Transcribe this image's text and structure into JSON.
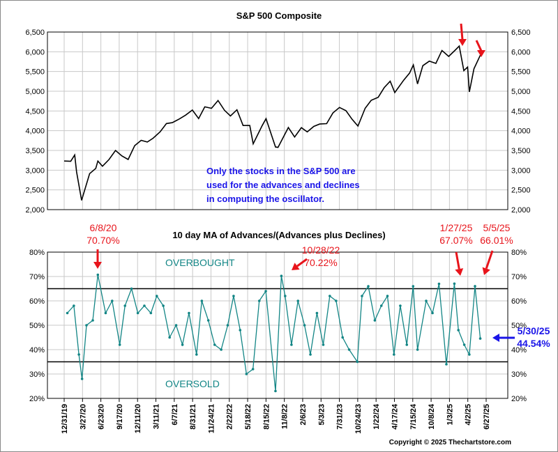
{
  "chart_data": [
    {
      "type": "line",
      "title": "S&P 500 Composite",
      "ylim": [
        2000,
        6500
      ],
      "yticks": [
        "2,000",
        "2,500",
        "3,000",
        "3,500",
        "4,000",
        "4,500",
        "5,000",
        "5,500",
        "6,000",
        "6,500"
      ],
      "ytick_values": [
        2000,
        2500,
        3000,
        3500,
        4000,
        4500,
        5000,
        5500,
        6000,
        6500
      ],
      "grid": true,
      "note": [
        "Only the stocks in the S&P 500 are",
        "used for the advances and declines",
        "in computing the oscillator."
      ],
      "series": [
        {
          "x": [
            "2019-12-31",
            "2020-01-31",
            "2020-02-19",
            "2020-02-28",
            "2020-03-23",
            "2020-04-30",
            "2020-05-29",
            "2020-06-08",
            "2020-06-30",
            "2020-07-31",
            "2020-08-31",
            "2020-09-30",
            "2020-10-30",
            "2020-11-30",
            "2020-12-31",
            "2021-01-29",
            "2021-02-26",
            "2021-03-31",
            "2021-04-30",
            "2021-05-28",
            "2021-06-30",
            "2021-07-30",
            "2021-08-31",
            "2021-09-30",
            "2021-10-29",
            "2021-11-30",
            "2021-12-31",
            "2022-01-31",
            "2022-02-28",
            "2022-03-31",
            "2022-04-29",
            "2022-05-31",
            "2022-06-16",
            "2022-07-29",
            "2022-08-16",
            "2022-09-30",
            "2022-10-12",
            "2022-11-30",
            "2022-12-30",
            "2023-01-31",
            "2023-02-28",
            "2023-03-31",
            "2023-04-28",
            "2023-05-31",
            "2023-06-30",
            "2023-07-31",
            "2023-08-31",
            "2023-09-29",
            "2023-10-27",
            "2023-11-30",
            "2023-12-29",
            "2024-01-31",
            "2024-02-29",
            "2024-03-28",
            "2024-04-19",
            "2024-05-31",
            "2024-06-28",
            "2024-07-16",
            "2024-08-05",
            "2024-08-30",
            "2024-09-30",
            "2024-10-31",
            "2024-11-29",
            "2024-12-31",
            "2025-01-31",
            "2025-02-19",
            "2025-03-13",
            "2025-03-31",
            "2025-04-08",
            "2025-04-30",
            "2025-05-30"
          ],
          "y": [
            3231,
            3226,
            3386,
            2954,
            2237,
            2912,
            3044,
            3232,
            3100,
            3271,
            3500,
            3363,
            3270,
            3622,
            3756,
            3714,
            3811,
            3973,
            4181,
            4204,
            4298,
            4395,
            4523,
            4308,
            4605,
            4567,
            4766,
            4516,
            4374,
            4530,
            4132,
            4132,
            3667,
            4130,
            4305,
            3586,
            3577,
            4080,
            3840,
            4077,
            3970,
            4109,
            4169,
            4180,
            4450,
            4589,
            4508,
            4288,
            4117,
            4568,
            4770,
            4846,
            5096,
            5254,
            4967,
            5278,
            5460,
            5667,
            5186,
            5648,
            5762,
            5705,
            6032,
            5882,
            6041,
            6144,
            5522,
            5612,
            4982,
            5569,
            5912
          ]
        }
      ]
    },
    {
      "type": "line",
      "title": "10 day MA of Advances/(Advances plus Declines)",
      "ylim": [
        20,
        80
      ],
      "yticks": [
        "20%",
        "30%",
        "40%",
        "50%",
        "60%",
        "70%",
        "80%"
      ],
      "ytick_values": [
        20,
        30,
        40,
        50,
        60,
        70,
        80
      ],
      "reference_lines": [
        65,
        35
      ],
      "zone_labels": {
        "overbought": "OVERBOUGHT",
        "oversold": "OVERSOLD"
      },
      "grid": true,
      "color": "#128585",
      "xticks": [
        "12/31/19",
        "3/27/20",
        "6/23/20",
        "9/17/20",
        "12/11/20",
        "3/11/21",
        "6/7/21",
        "8/31/21",
        "11/24/21",
        "2/22/22",
        "5/18/22",
        "8/15/22",
        "11/8/22",
        "2/6/23",
        "5/3/23",
        "7/31/23",
        "10/24/23",
        "1/22/24",
        "4/17/24",
        "7/15/24",
        "10/8/24",
        "1/3/25",
        "4/2/25",
        "6/27/25"
      ],
      "series": [
        {
          "x": [
            "2020-01-15",
            "2020-02-15",
            "2020-03-10",
            "2020-03-25",
            "2020-04-15",
            "2020-05-15",
            "2020-06-08",
            "2020-07-15",
            "2020-08-15",
            "2020-09-20",
            "2020-10-15",
            "2020-11-15",
            "2020-12-15",
            "2021-01-15",
            "2021-02-15",
            "2021-03-15",
            "2021-04-15",
            "2021-05-15",
            "2021-06-15",
            "2021-07-15",
            "2021-08-15",
            "2021-09-20",
            "2021-10-15",
            "2021-11-15",
            "2021-12-15",
            "2022-01-15",
            "2022-02-15",
            "2022-03-15",
            "2022-04-15",
            "2022-05-15",
            "2022-06-15",
            "2022-07-15",
            "2022-08-15",
            "2022-09-30",
            "2022-10-28",
            "2022-11-15",
            "2022-12-15",
            "2023-01-15",
            "2023-02-15",
            "2023-03-15",
            "2023-04-15",
            "2023-05-15",
            "2023-06-15",
            "2023-07-15",
            "2023-08-15",
            "2023-09-15",
            "2023-10-24",
            "2023-11-15",
            "2023-12-15",
            "2024-01-15",
            "2024-02-15",
            "2024-03-15",
            "2024-04-15",
            "2024-05-15",
            "2024-06-15",
            "2024-07-15",
            "2024-08-05",
            "2024-09-15",
            "2024-10-15",
            "2024-11-15",
            "2024-12-20",
            "2025-01-27",
            "2025-02-15",
            "2025-03-15",
            "2025-04-08",
            "2025-05-05",
            "2025-05-30"
          ],
          "y": [
            55,
            58,
            38,
            28,
            50,
            52,
            70.7,
            55,
            60,
            42,
            58,
            65,
            55,
            58,
            55,
            62,
            58,
            45,
            50,
            42,
            55,
            38,
            60,
            52,
            42,
            40,
            50,
            62,
            48,
            30,
            32,
            60,
            64,
            23,
            70.22,
            62,
            42,
            60,
            50,
            38,
            55,
            42,
            62,
            60,
            45,
            40,
            35,
            62,
            66,
            52,
            58,
            62,
            38,
            58,
            42,
            66,
            40,
            60,
            55,
            67,
            34,
            67.07,
            48,
            42,
            38,
            66.01,
            44.54
          ]
        }
      ],
      "annotations": [
        {
          "lines": [
            "6/8/20",
            "70.70%"
          ],
          "date": "2020-06-08",
          "value": 70.7,
          "color": "#e8141b"
        },
        {
          "lines": [
            "10/28/22",
            "70.22%"
          ],
          "date": "2022-10-28",
          "value": 70.22,
          "color": "#e8141b"
        },
        {
          "lines": [
            "1/27/25",
            "67.07%"
          ],
          "date": "2025-01-27",
          "value": 67.07,
          "color": "#e8141b"
        },
        {
          "lines": [
            "5/5/25",
            "66.01%"
          ],
          "date": "2025-05-05",
          "value": 66.01,
          "color": "#e8141b"
        },
        {
          "lines": [
            "5/30/25",
            "44.54%"
          ],
          "date": "2025-05-30",
          "value": 44.54,
          "color": "#1a14e8"
        }
      ]
    }
  ],
  "copyright": "Copyright © 2025 Thechartstore.com"
}
